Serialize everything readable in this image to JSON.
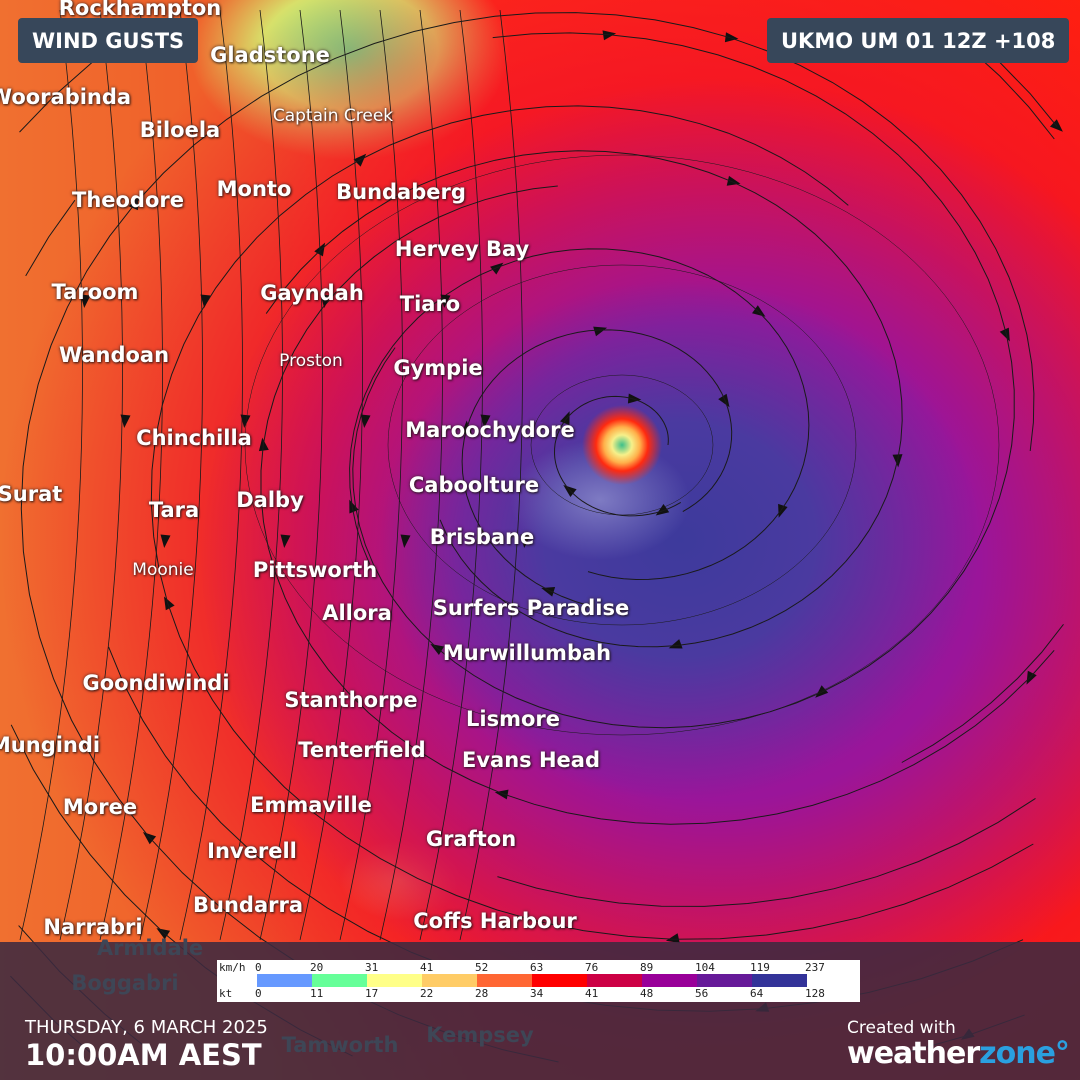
{
  "header": {
    "layer_label": "WIND GUSTS",
    "model_label": "UKMO UM 01 12Z +108"
  },
  "cities": [
    "Rockhampton",
    "Gladstone",
    "Woorabinda",
    "Biloela",
    "Captain Creek",
    "Theodore",
    "Monto",
    "Bundaberg",
    "Hervey Bay",
    "Taroom",
    "Gayndah",
    "Tiaro",
    "Wandoan",
    "Proston",
    "Gympie",
    "Chinchilla",
    "Maroochydore",
    "Caboolture",
    "Surat",
    "Tara",
    "Dalby",
    "Brisbane",
    "Moonie",
    "Pittsworth",
    "Allora",
    "Surfers Paradise",
    "Murwillumbah",
    "Goondiwindi",
    "Stanthorpe",
    "Lismore",
    "Mungindi",
    "Tenterfield",
    "Evans Head",
    "Moree",
    "Emmaville",
    "Grafton",
    "Inverell",
    "Bundarra",
    "Narrabri",
    "Coffs Harbour",
    "Armidale",
    "Boggabri",
    "Tamworth",
    "Kempsey"
  ],
  "legend": {
    "unit_kmh": "km/h",
    "unit_kt": "kt",
    "kmh": [
      "0",
      "20",
      "31",
      "41",
      "52",
      "63",
      "76",
      "89",
      "104",
      "119",
      "237"
    ],
    "kt": [
      "0",
      "11",
      "17",
      "22",
      "28",
      "34",
      "41",
      "48",
      "56",
      "64",
      "128"
    ],
    "colors": [
      "#6699ff",
      "#66ff99",
      "#ffff88",
      "#ffcc66",
      "#ff6633",
      "#ff0000",
      "#cc0044",
      "#990099",
      "#661a99",
      "#333399"
    ]
  },
  "footer": {
    "date": "THURSDAY, 6 MARCH 2025",
    "time": "10:00AM AEST",
    "created_with": "Created with",
    "brand_a": "weather",
    "brand_b": "zone°"
  },
  "colors": {
    "badge": "#37475a",
    "cyclone_core": "#3cc08a",
    "brand_accent": "#2aa0e0"
  }
}
